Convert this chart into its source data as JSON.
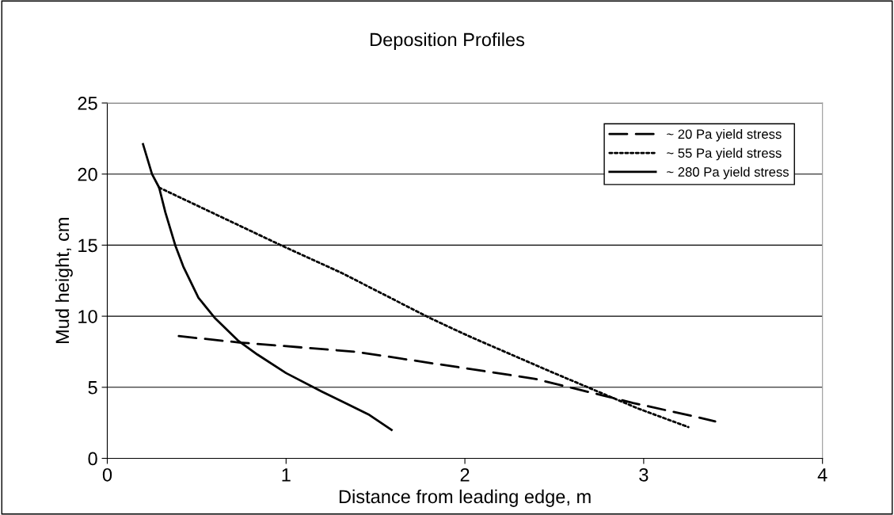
{
  "chart_data": {
    "type": "line",
    "title": "Deposition Profiles",
    "xlabel": "Distance from leading edge, m",
    "ylabel": "Mud height, cm",
    "xlim": [
      0,
      4
    ],
    "xticks": [
      0,
      1,
      2,
      3,
      4
    ],
    "ylim": [
      0,
      25
    ],
    "yticks": [
      0,
      5,
      10,
      15,
      20,
      25
    ],
    "grid": "y",
    "legend": "top right",
    "marker": "none",
    "series": [
      {
        "name": "~ 20 Pa yield stress",
        "color": "#000000",
        "line_style": "dashed",
        "x": [
          0.4,
          0.74,
          1.39,
          1.97,
          2.39,
          2.65,
          2.94,
          3.3,
          3.4
        ],
        "values": [
          8.6,
          8.15,
          7.5,
          6.4,
          5.6,
          4.8,
          3.9,
          2.9,
          2.6
        ]
      },
      {
        "name": "~ 55 Pa yield stress",
        "color": "#000000",
        "line_style": "dotted",
        "x": [
          0.29,
          0.97,
          1.31,
          1.8,
          1.97,
          2.04,
          2.48,
          2.97,
          3.25
        ],
        "values": [
          19.05,
          15.0,
          13.05,
          9.9,
          8.9,
          8.5,
          6.1,
          3.5,
          2.2
        ]
      },
      {
        "name": "~ 280 Pa yield stress",
        "color": "#000000",
        "line_style": "solid",
        "x": [
          0.2,
          0.25,
          0.29,
          0.325,
          0.38,
          0.425,
          0.51,
          0.6,
          0.73,
          0.84,
          1.0,
          1.2,
          1.46,
          1.59
        ],
        "values": [
          22.1,
          20,
          19.05,
          17.3,
          15,
          13.5,
          11.3,
          9.9,
          8.3,
          7.3,
          6.0,
          4.7,
          3.1,
          2.0
        ]
      }
    ]
  }
}
